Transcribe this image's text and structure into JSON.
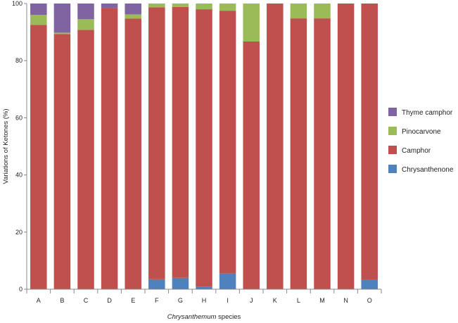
{
  "chart_data": {
    "type": "bar",
    "stacked": true,
    "categories": [
      "A",
      "B",
      "C",
      "D",
      "E",
      "F",
      "G",
      "H",
      "I",
      "J",
      "K",
      "L",
      "M",
      "N",
      "O"
    ],
    "series": [
      {
        "name": "Chrysanthenone",
        "color": "#4f81bd",
        "values": [
          0,
          0,
          0,
          0,
          0,
          3.5,
          4,
          0.8,
          5.5,
          0,
          0,
          0,
          0,
          0,
          3.3
        ]
      },
      {
        "name": "Camphor",
        "color": "#c0504d",
        "values": [
          92.5,
          89.3,
          90.8,
          98.3,
          94.7,
          95.2,
          94.8,
          97.2,
          92,
          86.7,
          100,
          94.8,
          94.8,
          100,
          96.7
        ]
      },
      {
        "name": "Pinocarvone",
        "color": "#9bbb59",
        "values": [
          3.5,
          0.5,
          3.7,
          0,
          1.5,
          1.3,
          1.2,
          2,
          2.5,
          13.3,
          0,
          5.2,
          5.2,
          0,
          0
        ]
      },
      {
        "name": "Thyme camphor",
        "color": "#8064a2",
        "values": [
          4,
          10.2,
          5.5,
          1.7,
          3.8,
          0,
          0,
          0,
          0,
          0,
          0,
          0,
          0,
          0,
          0
        ]
      }
    ],
    "legend_order": [
      3,
      2,
      1,
      0
    ],
    "legend_position": "right",
    "ylabel": "Variations of Ketones (%)",
    "xlabel_italic": "Chrysanthemum",
    "xlabel_rest": " species",
    "ylim": [
      0,
      100
    ],
    "yticks": [
      0,
      20,
      40,
      60,
      80,
      100
    ],
    "grid": false
  }
}
